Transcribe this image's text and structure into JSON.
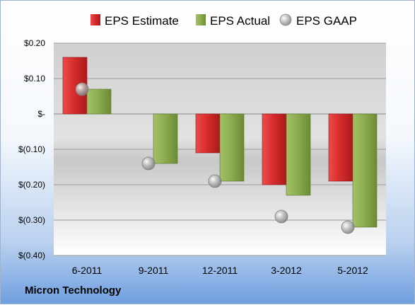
{
  "footer": {
    "company": "Micron Technology"
  },
  "colors": {
    "estimate": "#d42a2a",
    "actual": "#8aab4e",
    "gaap": "#a8a8a8"
  },
  "chart_data": {
    "type": "bar",
    "categories": [
      "6-2011",
      "9-2011",
      "12-2011",
      "3-2012",
      "5-2012"
    ],
    "series": [
      {
        "name": "EPS Estimate",
        "values": [
          0.16,
          null,
          -0.11,
          -0.2,
          -0.19
        ]
      },
      {
        "name": "EPS Actual",
        "values": [
          0.07,
          -0.14,
          -0.19,
          -0.23,
          -0.32
        ]
      },
      {
        "name": "EPS GAAP",
        "type": "scatter",
        "values": [
          0.07,
          -0.14,
          -0.19,
          -0.29,
          -0.32
        ]
      }
    ],
    "y_ticks": [
      {
        "value": 0.2,
        "label": "$0.20"
      },
      {
        "value": 0.1,
        "label": "$0.10"
      },
      {
        "value": 0,
        "label": "$-"
      },
      {
        "value": -0.1,
        "label": "$(0.10)"
      },
      {
        "value": -0.2,
        "label": "$(0.20)"
      },
      {
        "value": -0.3,
        "label": "$(0.30)"
      },
      {
        "value": -0.4,
        "label": "$(0.40)"
      }
    ],
    "ylim": [
      -0.4,
      0.2
    ],
    "grid": true,
    "legend": "top"
  }
}
